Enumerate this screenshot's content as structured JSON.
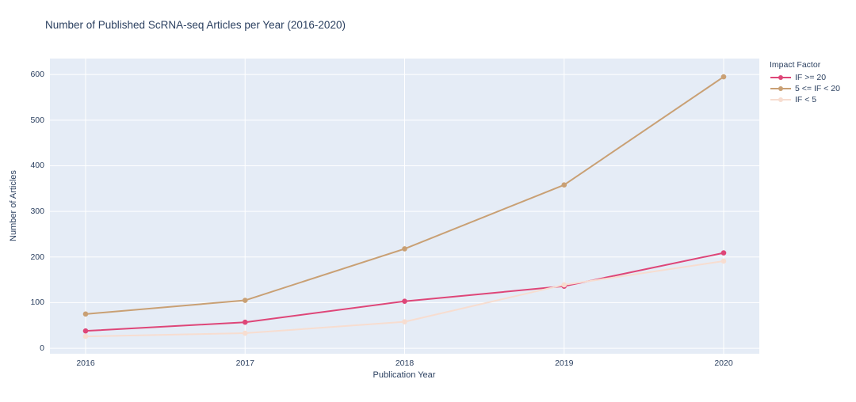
{
  "title": "Number of Published ScRNA-seq Articles per Year (2016-2020)",
  "colors": {
    "text": "#2a3f5f",
    "plot_background": "#e5ecf6",
    "grid": "#ffffff",
    "paper_background": "#ffffff",
    "series_if_ge_20": "#de4678",
    "series_if_5_20": "#c9a074",
    "series_if_lt_5": "#f7ddd0"
  },
  "legend": {
    "title": "Impact Factor"
  },
  "chart_data": {
    "type": "line",
    "title": "Number of Published ScRNA-seq Articles per Year (2016-2020)",
    "xlabel": "Publication Year",
    "ylabel": "Number of Articles",
    "x": [
      2016,
      2017,
      2018,
      2019,
      2020
    ],
    "series": [
      {
        "name": "IF >= 20",
        "color": "#de4678",
        "values": [
          38,
          57,
          103,
          136,
          209
        ]
      },
      {
        "name": "5 <= IF < 20",
        "color": "#c9a074",
        "values": [
          75,
          105,
          218,
          358,
          595
        ]
      },
      {
        "name": "IF < 5",
        "color": "#f7ddd0",
        "values": [
          26,
          33,
          58,
          139,
          191
        ]
      }
    ],
    "yticks": [
      0,
      100,
      200,
      300,
      400,
      500,
      600
    ],
    "ylim": [
      -12,
      635
    ],
    "xlim": [
      2015.78,
      2020.22
    ],
    "grid": true,
    "legend_position": "right",
    "legend_title": "Impact Factor"
  }
}
